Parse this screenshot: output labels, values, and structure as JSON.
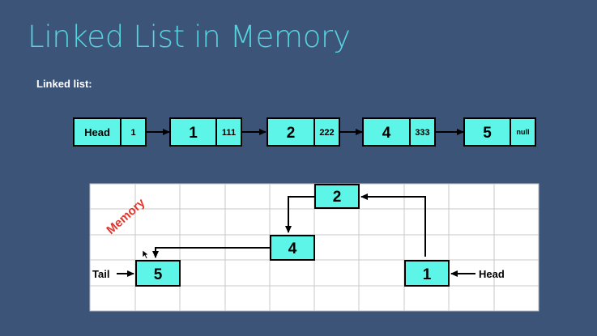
{
  "title": "Linked List in Memory",
  "subtitle": "Linked list:",
  "list": {
    "head": {
      "label": "Head",
      "pointer": "1"
    },
    "nodes": [
      {
        "value": "1",
        "pointer": "111"
      },
      {
        "value": "2",
        "pointer": "222"
      },
      {
        "value": "4",
        "pointer": "333"
      },
      {
        "value": "5",
        "pointer": "null"
      }
    ]
  },
  "memory": {
    "label": "Memory",
    "cells": {
      "n2": "2",
      "n4": "4",
      "n5": "5",
      "n1": "1"
    },
    "tail_label": "Tail",
    "head_label": "Head"
  },
  "colors": {
    "background": "#3d5479",
    "title": "#56d3de",
    "node_fill": "#5cf5e7",
    "memory_label": "#e8352b"
  }
}
